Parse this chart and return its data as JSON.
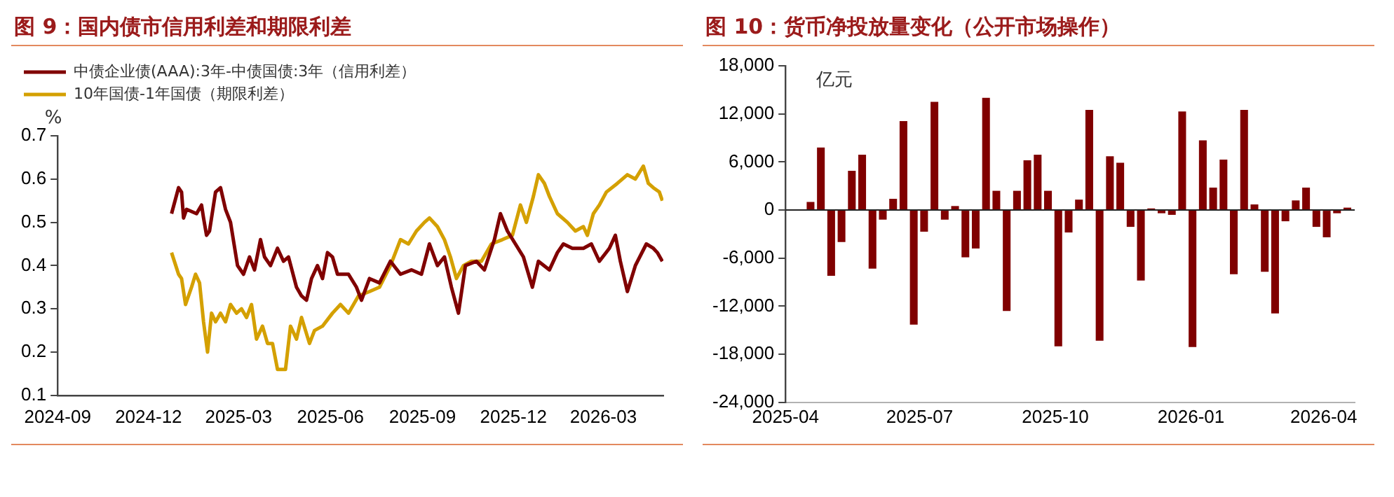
{
  "chart_data": [
    {
      "type": "line",
      "title": "图 9：国内债市信用利差和期限利差",
      "ylabel": "%",
      "legend": "top",
      "xlim": [
        "2024-09-01",
        "2026-04-30"
      ],
      "xticks": [
        "2024-09",
        "2024-12",
        "2025-03",
        "2025-06",
        "2025-09",
        "2025-12",
        "2026-03"
      ],
      "ylim": [
        0.1,
        0.7
      ],
      "yticks": [
        0.1,
        0.2,
        0.3,
        0.4,
        0.5,
        0.6,
        0.7
      ],
      "series": [
        {
          "name": "中债企业债(AAA):3年-中债国债:3年（信用利差）",
          "color": "#800000",
          "x": [
            "2024-12-24",
            "2024-12-31",
            "2025-01-03",
            "2025-01-05",
            "2025-01-08",
            "2025-01-18",
            "2025-01-23",
            "2025-01-25",
            "2025-01-28",
            "2025-01-31",
            "2025-02-06",
            "2025-02-11",
            "2025-02-16",
            "2025-02-21",
            "2025-02-28",
            "2025-03-06",
            "2025-03-12",
            "2025-03-17",
            "2025-03-23",
            "2025-03-27",
            "2025-04-02",
            "2025-04-09",
            "2025-04-15",
            "2025-04-20",
            "2025-04-28",
            "2025-05-03",
            "2025-05-08",
            "2025-05-13",
            "2025-05-19",
            "2025-05-24",
            "2025-05-29",
            "2025-06-03",
            "2025-06-08",
            "2025-06-19",
            "2025-06-27",
            "2025-07-02",
            "2025-07-10",
            "2025-07-20",
            "2025-07-31",
            "2025-08-10",
            "2025-08-21",
            "2025-08-31",
            "2025-09-08",
            "2025-09-16",
            "2025-09-23",
            "2025-09-30",
            "2025-10-07",
            "2025-10-14",
            "2025-10-25",
            "2025-11-02",
            "2025-11-12",
            "2025-11-18",
            "2025-11-25",
            "2025-12-03",
            "2025-12-11",
            "2025-12-20",
            "2025-12-26",
            "2026-01-06",
            "2026-01-14",
            "2026-01-20",
            "2026-01-29",
            "2026-02-09",
            "2026-02-17",
            "2026-02-25",
            "2026-03-07",
            "2026-03-13",
            "2026-03-18",
            "2026-03-25",
            "2026-04-02",
            "2026-04-13",
            "2026-04-20",
            "2026-04-24",
            "2026-04-29"
          ],
          "values": [
            0.52,
            0.58,
            0.57,
            0.51,
            0.53,
            0.52,
            0.54,
            0.51,
            0.47,
            0.48,
            0.57,
            0.58,
            0.53,
            0.5,
            0.4,
            0.38,
            0.42,
            0.39,
            0.46,
            0.42,
            0.4,
            0.44,
            0.41,
            0.42,
            0.35,
            0.33,
            0.32,
            0.37,
            0.4,
            0.37,
            0.43,
            0.42,
            0.38,
            0.38,
            0.35,
            0.32,
            0.37,
            0.36,
            0.41,
            0.38,
            0.39,
            0.38,
            0.45,
            0.4,
            0.42,
            0.35,
            0.29,
            0.4,
            0.41,
            0.39,
            0.46,
            0.52,
            0.48,
            0.45,
            0.42,
            0.35,
            0.41,
            0.39,
            0.43,
            0.45,
            0.44,
            0.44,
            0.45,
            0.41,
            0.44,
            0.47,
            0.41,
            0.34,
            0.4,
            0.45,
            0.44,
            0.43,
            0.41
          ]
        },
        {
          "name": "10年国债-1年国债（期限利差）",
          "color": "#d4a000",
          "x": [
            "2024-12-24",
            "2024-12-31",
            "2025-01-03",
            "2025-01-07",
            "2025-01-13",
            "2025-01-17",
            "2025-01-21",
            "2025-01-25",
            "2025-01-29",
            "2025-02-02",
            "2025-02-06",
            "2025-02-11",
            "2025-02-16",
            "2025-02-21",
            "2025-02-27",
            "2025-03-04",
            "2025-03-09",
            "2025-03-14",
            "2025-03-19",
            "2025-03-25",
            "2025-03-30",
            "2025-04-04",
            "2025-04-09",
            "2025-04-17",
            "2025-04-22",
            "2025-04-28",
            "2025-05-03",
            "2025-05-11",
            "2025-05-16",
            "2025-05-24",
            "2025-06-03",
            "2025-06-11",
            "2025-06-19",
            "2025-06-29",
            "2025-07-10",
            "2025-07-20",
            "2025-07-31",
            "2025-08-10",
            "2025-08-18",
            "2025-08-26",
            "2025-09-03",
            "2025-09-08",
            "2025-09-16",
            "2025-09-23",
            "2025-09-29",
            "2025-10-05",
            "2025-10-12",
            "2025-10-20",
            "2025-10-30",
            "2025-11-09",
            "2025-11-20",
            "2025-11-30",
            "2025-12-08",
            "2025-12-14",
            "2025-12-21",
            "2025-12-26",
            "2026-01-01",
            "2026-01-06",
            "2026-01-14",
            "2026-01-24",
            "2026-02-01",
            "2026-02-09",
            "2026-02-13",
            "2026-02-19",
            "2026-02-25",
            "2026-03-04",
            "2026-03-15",
            "2026-03-25",
            "2026-04-02",
            "2026-04-10",
            "2026-04-15",
            "2026-04-20",
            "2026-04-26",
            "2026-04-29"
          ],
          "values": [
            0.43,
            0.38,
            0.37,
            0.31,
            0.35,
            0.38,
            0.36,
            0.27,
            0.2,
            0.29,
            0.27,
            0.29,
            0.27,
            0.31,
            0.29,
            0.3,
            0.28,
            0.31,
            0.23,
            0.26,
            0.22,
            0.22,
            0.16,
            0.16,
            0.26,
            0.23,
            0.28,
            0.22,
            0.25,
            0.26,
            0.29,
            0.31,
            0.29,
            0.33,
            0.34,
            0.35,
            0.4,
            0.46,
            0.45,
            0.48,
            0.5,
            0.51,
            0.49,
            0.46,
            0.42,
            0.37,
            0.4,
            0.41,
            0.41,
            0.45,
            0.46,
            0.47,
            0.54,
            0.5,
            0.56,
            0.61,
            0.59,
            0.56,
            0.52,
            0.5,
            0.48,
            0.49,
            0.47,
            0.52,
            0.54,
            0.57,
            0.59,
            0.61,
            0.6,
            0.63,
            0.59,
            0.58,
            0.57,
            0.55
          ]
        }
      ]
    },
    {
      "type": "bar",
      "title": "图 10：货币净投放量变化（公开市场操作）",
      "ylabel": "亿元",
      "legend": false,
      "xlim": [
        "2025-04-01",
        "2026-04-22"
      ],
      "xticks": [
        "2025-04",
        "2025-07",
        "2025-10",
        "2026-01",
        "2026-04"
      ],
      "ylim": [
        -24000,
        18000
      ],
      "yticks": [
        {
          "value": -24000,
          "label": "-24,000"
        },
        {
          "value": -18000,
          "label": "-18,000"
        },
        {
          "value": -12000,
          "label": "-12,000"
        },
        {
          "value": -6000,
          "label": "-6,000"
        },
        0,
        {
          "value": 6000,
          "label": "6,000"
        },
        {
          "value": 12000,
          "label": "12,000"
        },
        {
          "value": 18000,
          "label": "18,000"
        }
      ],
      "series": [
        {
          "color": "#800000",
          "x": [
            "2025-04-18",
            "2025-04-25",
            "2025-05-02",
            "2025-05-09",
            "2025-05-16",
            "2025-05-23",
            "2025-05-30",
            "2025-06-06",
            "2025-06-13",
            "2025-06-20",
            "2025-06-27",
            "2025-07-04",
            "2025-07-11",
            "2025-07-18",
            "2025-07-25",
            "2025-08-01",
            "2025-08-08",
            "2025-08-15",
            "2025-08-22",
            "2025-08-29",
            "2025-09-05",
            "2025-09-12",
            "2025-09-19",
            "2025-09-26",
            "2025-10-03",
            "2025-10-10",
            "2025-10-17",
            "2025-10-24",
            "2025-10-31",
            "2025-11-07",
            "2025-11-14",
            "2025-11-21",
            "2025-11-28",
            "2025-12-05",
            "2025-12-12",
            "2025-12-19",
            "2025-12-26",
            "2026-01-02",
            "2026-01-09",
            "2026-01-16",
            "2026-01-23",
            "2026-01-30",
            "2026-02-06",
            "2026-02-13",
            "2026-02-20",
            "2026-02-27",
            "2026-03-06",
            "2026-03-13",
            "2026-03-20",
            "2026-03-27",
            "2026-04-03",
            "2026-04-10",
            "2026-04-17"
          ],
          "values": [
            1000,
            7800,
            -8200,
            -4000,
            4900,
            6900,
            -7300,
            -1200,
            1400,
            11100,
            -14300,
            -2700,
            13500,
            -1200,
            500,
            -5900,
            -4800,
            14000,
            2400,
            -12600,
            2400,
            6200,
            6900,
            2400,
            -17000,
            -2800,
            1300,
            12500,
            -16300,
            6700,
            5900,
            -2100,
            -8800,
            200,
            -400,
            -600,
            12300,
            -17100,
            8700,
            2800,
            6300,
            -8000,
            12500,
            700,
            -7700,
            -12900,
            -1400,
            1200,
            2800,
            -2100,
            -3400,
            -400,
            300
          ]
        }
      ]
    }
  ]
}
